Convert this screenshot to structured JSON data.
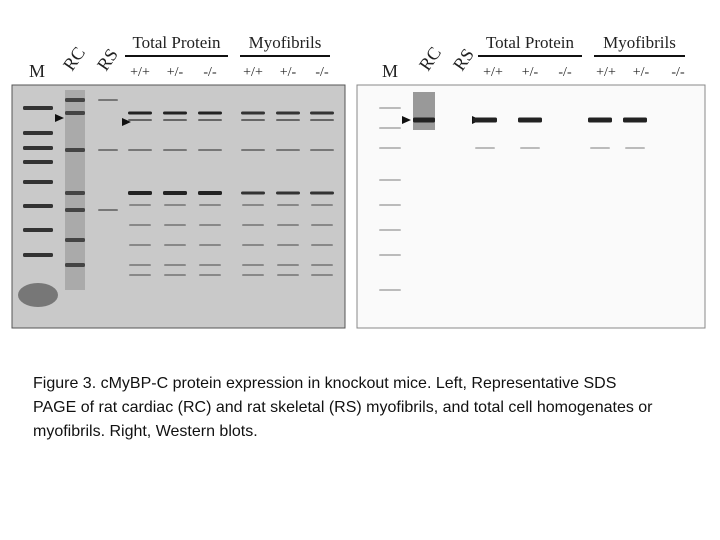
{
  "panels": [
    {
      "marker": "M",
      "lanes": [
        "RC",
        "RS"
      ],
      "groups": [
        {
          "title": "Total Protein",
          "genotypes": [
            "+/+",
            "+/-",
            "-/-"
          ]
        },
        {
          "title": "Myofibrils",
          "genotypes": [
            "+/+",
            "+/-",
            "-/-"
          ]
        }
      ]
    },
    {
      "marker": "M",
      "lanes": [
        "RC",
        "RS"
      ],
      "groups": [
        {
          "title": "Total Protein",
          "genotypes": [
            "+/+",
            "+/-",
            "-/-"
          ]
        },
        {
          "title": "Myofibrils",
          "genotypes": [
            "+/+",
            "+/-",
            "-/-"
          ]
        }
      ]
    }
  ],
  "caption": "Figure 3. cMyBP-C protein expression in knockout mice. Left, Representative SDS PAGE of rat cardiac (RC) and rat skeletal (RS) myofibrils, and total cell homogenates or myofibrils. Right, Western blots."
}
